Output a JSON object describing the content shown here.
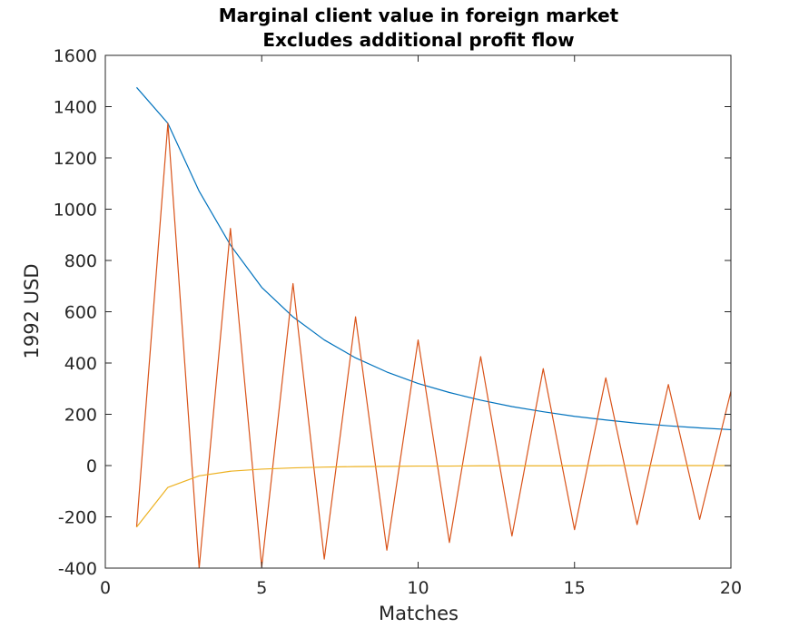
{
  "chart_data": {
    "type": "line",
    "title": "Marginal client value in foreign market",
    "subtitle": "Excludes additional profit flow",
    "xlabel": "Matches",
    "ylabel": "1992 USD",
    "xlim": [
      0,
      20
    ],
    "ylim": [
      -400,
      1600
    ],
    "xticks": [
      0,
      5,
      10,
      15,
      20
    ],
    "yticks": [
      -400,
      -200,
      0,
      200,
      400,
      600,
      800,
      1000,
      1200,
      1400,
      1600
    ],
    "grid": false,
    "legend": "none",
    "series": [
      {
        "color": "#0072BD",
        "x": [
          1,
          2,
          3,
          4,
          5,
          6,
          7,
          8,
          9,
          10,
          11,
          12,
          13,
          14,
          15,
          16,
          17,
          18,
          19,
          20
        ],
        "y": [
          1475,
          1335,
          1070,
          860,
          695,
          580,
          490,
          420,
          365,
          320,
          285,
          255,
          230,
          210,
          192,
          178,
          165,
          155,
          147,
          140
        ]
      },
      {
        "color": "#D95319",
        "x": [
          1,
          2,
          3,
          4,
          5,
          6,
          7,
          8,
          9,
          10,
          11,
          12,
          13,
          14,
          15,
          16,
          17,
          18,
          19,
          20
        ],
        "y": [
          -240,
          1335,
          -400,
          925,
          -395,
          710,
          -365,
          580,
          -330,
          490,
          -300,
          425,
          -275,
          378,
          -250,
          342,
          -230,
          316,
          -210,
          290
        ]
      },
      {
        "color": "#EDB120",
        "x": [
          1,
          2,
          3,
          4,
          5,
          6,
          7,
          8,
          9,
          10,
          11,
          12,
          13,
          14,
          15,
          16,
          17,
          18,
          19,
          20
        ],
        "y": [
          -240,
          -85,
          -40,
          -22,
          -14,
          -9,
          -6,
          -4,
          -3,
          -2,
          -2,
          -1,
          -1,
          -1,
          -1,
          0,
          0,
          0,
          0,
          0
        ]
      }
    ]
  }
}
